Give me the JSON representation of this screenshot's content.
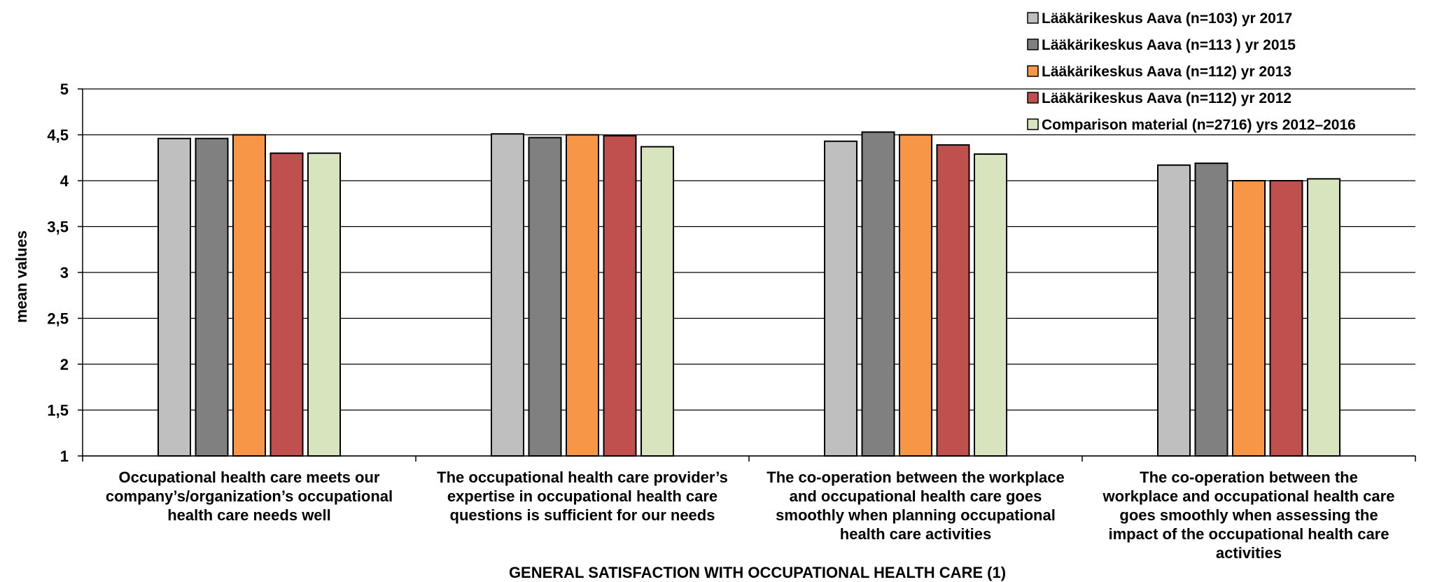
{
  "chart_data": {
    "type": "bar",
    "title": "",
    "xlabel": "GENERAL SATISFACTION WITH OCCUPATIONAL HEALTH CARE (1)",
    "ylabel": "mean values",
    "ylim": [
      1,
      5
    ],
    "yticks": [
      "1",
      "1,5",
      "2",
      "2,5",
      "3",
      "3,5",
      "4",
      "4,5",
      "5"
    ],
    "grid": true,
    "legend_position": "top-right",
    "categories": [
      [
        "Occupational health care meets our",
        "company’s/organization’s occupational",
        "health care needs well"
      ],
      [
        "The occupational health care provider’s",
        "expertise in occupational health care",
        "questions is sufficient for our needs"
      ],
      [
        "The co-operation between the workplace",
        "and occupational health care goes",
        "smoothly when planning occupational",
        "health care activities"
      ],
      [
        "The co-operation between the",
        "workplace and occupational health care",
        "goes smoothly when assessing the",
        "impact of the occupational health care",
        "activities"
      ]
    ],
    "series": [
      {
        "name": "Lääkärikeskus Aava (n=103)  yr 2017",
        "color": "#bfbfbf",
        "values": [
          4.46,
          4.51,
          4.43,
          4.17
        ]
      },
      {
        "name": "Lääkärikeskus Aava (n=113 ) yr 2015",
        "color": "#808080",
        "values": [
          4.46,
          4.47,
          4.53,
          4.19
        ]
      },
      {
        "name": "Lääkärikeskus Aava (n=112)  yr 2013",
        "color": "#f79646",
        "values": [
          4.5,
          4.5,
          4.5,
          4.0
        ]
      },
      {
        "name": "Lääkärikeskus Aava (n=112)  yr 2012",
        "color": "#c0504d",
        "values": [
          4.3,
          4.49,
          4.39,
          4.0
        ]
      },
      {
        "name": "Comparison material (n=2716)  yrs 2012–2016",
        "color": "#d7e4bd",
        "values": [
          4.3,
          4.37,
          4.29,
          4.02
        ]
      }
    ]
  }
}
